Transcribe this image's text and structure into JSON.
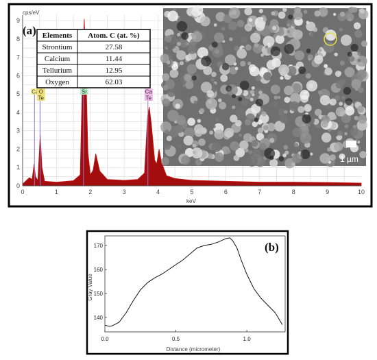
{
  "chart_data": [
    {
      "type": "area",
      "panel_label": "(a)",
      "xlabel": "keV",
      "ylabel": "cps/eV",
      "xlim": [
        0,
        10
      ],
      "ylim": [
        0,
        9.3
      ],
      "x_ticks": [
        0,
        1,
        2,
        3,
        4,
        5,
        6,
        7,
        8,
        9,
        10
      ],
      "y_ticks": [
        0,
        1,
        2,
        3,
        4,
        5,
        6,
        7,
        8,
        9
      ],
      "grid": true,
      "colors": {
        "fill": "#a30d0d",
        "line": "#c81414",
        "peak_marker": "#9a7ed0"
      },
      "peak_labels": [
        {
          "x": 0.35,
          "labels": [
            "Ca"
          ],
          "color": "#f5f090"
        },
        {
          "x": 0.52,
          "labels": [
            "O",
            "Te"
          ],
          "color": "#f0e07a"
        },
        {
          "x": 1.8,
          "labels": [
            "Sr"
          ],
          "color": "#b8f0c8"
        },
        {
          "x": 3.7,
          "labels": [
            "Ca",
            "Te"
          ],
          "color": "#f0b8e8"
        }
      ],
      "spectrum": [
        [
          0.0,
          0.1
        ],
        [
          0.2,
          0.45
        ],
        [
          0.28,
          0.35
        ],
        [
          0.34,
          1.2
        ],
        [
          0.38,
          0.5
        ],
        [
          0.45,
          0.3
        ],
        [
          0.52,
          2.8
        ],
        [
          0.57,
          1.0
        ],
        [
          0.65,
          0.25
        ],
        [
          1.0,
          0.2
        ],
        [
          1.5,
          0.28
        ],
        [
          1.7,
          0.6
        ],
        [
          1.78,
          6.9
        ],
        [
          1.82,
          9.1
        ],
        [
          1.86,
          7.0
        ],
        [
          1.93,
          1.8
        ],
        [
          2.0,
          0.6
        ],
        [
          2.08,
          0.85
        ],
        [
          2.16,
          1.75
        ],
        [
          2.28,
          0.8
        ],
        [
          2.5,
          0.35
        ],
        [
          3.0,
          0.3
        ],
        [
          3.4,
          0.35
        ],
        [
          3.6,
          0.7
        ],
        [
          3.69,
          3.8
        ],
        [
          3.74,
          4.3
        ],
        [
          3.8,
          3.4
        ],
        [
          3.9,
          1.4
        ],
        [
          3.96,
          1.2
        ],
        [
          4.03,
          2.0
        ],
        [
          4.1,
          1.3
        ],
        [
          4.25,
          0.55
        ],
        [
          4.5,
          0.4
        ],
        [
          5.0,
          0.3
        ],
        [
          6.0,
          0.25
        ],
        [
          7.0,
          0.2
        ],
        [
          8.0,
          0.2
        ],
        [
          9.0,
          0.18
        ],
        [
          10.0,
          0.15
        ]
      ],
      "table": {
        "headers": [
          "Elements",
          "Atom. C (at. %)"
        ],
        "rows": [
          [
            "Strontium",
            "27.58"
          ],
          [
            "Calcium",
            "11.44"
          ],
          [
            "Tellurium",
            "12.95"
          ],
          [
            "Oxygen",
            "62.03"
          ]
        ]
      },
      "inset": {
        "type": "SEM micrograph",
        "scale_bar_label": "1 µm"
      }
    },
    {
      "type": "line",
      "panel_label": "(b)",
      "xlabel": "Distance (micrometer)",
      "ylabel": "Gray Value",
      "xlim": [
        0,
        1.27
      ],
      "ylim": [
        134,
        174
      ],
      "x_ticks": [
        0.0,
        0.5,
        1.0
      ],
      "x_tick_labels": [
        "0.0",
        "0.5",
        "1.0"
      ],
      "y_ticks": [
        140,
        150,
        160,
        170
      ],
      "grid": false,
      "series": [
        {
          "x": [
            0.0,
            0.03,
            0.05,
            0.1,
            0.15,
            0.2,
            0.25,
            0.3,
            0.35,
            0.4,
            0.45,
            0.5,
            0.55,
            0.6,
            0.65,
            0.7,
            0.75,
            0.8,
            0.85,
            0.88,
            0.9,
            0.93,
            0.96,
            1.0,
            1.05,
            1.1,
            1.15,
            1.2,
            1.25
          ],
          "y": [
            136.8,
            136.3,
            136.5,
            138,
            142,
            147,
            151.5,
            154.5,
            156.5,
            158,
            160,
            162,
            164,
            166.5,
            169,
            170,
            170.5,
            171.5,
            172.8,
            173.2,
            172,
            169,
            164,
            158,
            152,
            148,
            145,
            142,
            137
          ]
        }
      ]
    }
  ]
}
